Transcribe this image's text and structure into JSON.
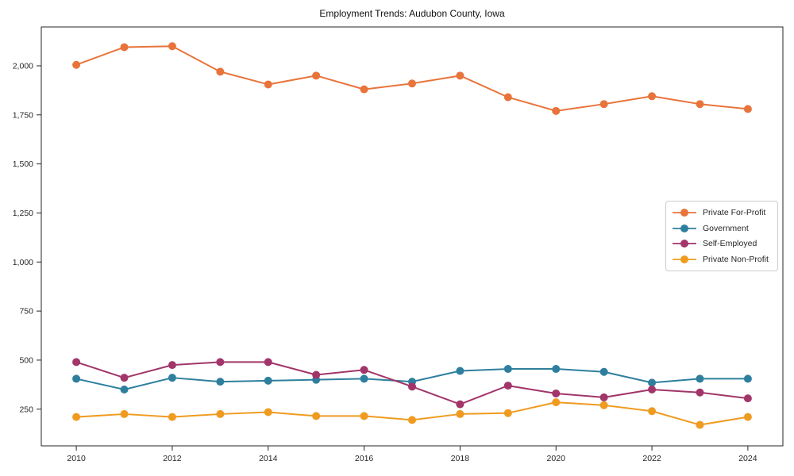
{
  "chart_data": {
    "type": "line",
    "title": "Employment Trends: Audubon County, Iowa",
    "xlabel": "",
    "ylabel": "",
    "grid": false,
    "legend_position": "center-right",
    "x": [
      2010,
      2011,
      2012,
      2013,
      2014,
      2015,
      2016,
      2017,
      2018,
      2019,
      2020,
      2021,
      2022,
      2023,
      2024
    ],
    "series": [
      {
        "name": "Private For-Profit",
        "color": "#E8743B",
        "values": [
          2005,
          2095,
          2100,
          1970,
          1905,
          1950,
          1880,
          1910,
          1950,
          1840,
          1770,
          1805,
          1845,
          1805,
          1780
        ]
      },
      {
        "name": "Government",
        "color": "#2E7F9E",
        "values": [
          405,
          350,
          410,
          390,
          395,
          400,
          405,
          390,
          445,
          455,
          455,
          440,
          385,
          405,
          405
        ]
      },
      {
        "name": "Self-Employed",
        "color": "#A23569",
        "values": [
          490,
          410,
          475,
          490,
          490,
          425,
          450,
          365,
          275,
          370,
          330,
          310,
          350,
          335,
          305
        ]
      },
      {
        "name": "Private Non-Profit",
        "color": "#EF9B20",
        "values": [
          210,
          225,
          210,
          225,
          235,
          215,
          215,
          195,
          225,
          230,
          285,
          270,
          240,
          170,
          210
        ]
      }
    ],
    "xticks": [
      2010,
      2012,
      2014,
      2016,
      2018,
      2020,
      2022,
      2024
    ],
    "xtick_labels": [
      "2010",
      "2012",
      "2014",
      "2016",
      "2018",
      "2020",
      "2022",
      "2024"
    ],
    "yticks": [
      250,
      500,
      750,
      1000,
      1250,
      1500,
      1750,
      2000
    ],
    "ytick_labels": [
      "250",
      "500",
      "750",
      "1,000",
      "1,250",
      "1,500",
      "1,750",
      "2,000"
    ],
    "xlim": [
      2009.27,
      2024.73
    ],
    "ylim": [
      63,
      2198
    ],
    "axis_color": "#262626",
    "tick_label_color": "#262626",
    "marker_radius": 5,
    "line_width": 2
  }
}
